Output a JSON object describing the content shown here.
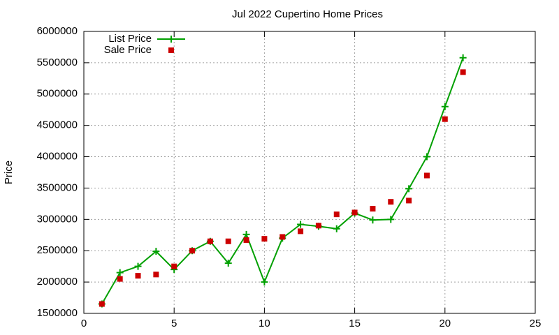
{
  "chart_data": {
    "type": "line",
    "title": "Jul 2022 Cupertino Home Prices",
    "y_label": "Price",
    "x": [
      1,
      2,
      3,
      4,
      5,
      6,
      7,
      8,
      9,
      10,
      11,
      12,
      13,
      14,
      15,
      16,
      17,
      18,
      19,
      20,
      21
    ],
    "series": [
      {
        "name": "List Price",
        "color": "#00a000",
        "style": "linespoints",
        "values": [
          1650000,
          2150000,
          2250000,
          2490000,
          2200000,
          2500000,
          2650000,
          2300000,
          2760000,
          2000000,
          2700000,
          2920000,
          2890000,
          2850000,
          3100000,
          2990000,
          3000000,
          3490000,
          4000000,
          4800000,
          5580000
        ]
      },
      {
        "name": "Sale Price",
        "color": "#cc0000",
        "style": "points",
        "values": [
          1650000,
          2050000,
          2100000,
          2120000,
          2250000,
          2500000,
          2650000,
          2650000,
          2670000,
          2690000,
          2720000,
          2810000,
          2900000,
          3080000,
          3110000,
          3170000,
          3280000,
          3300000,
          3700000,
          4600000,
          5350000
        ]
      }
    ],
    "xlim": [
      0,
      25
    ],
    "xticks": [
      0,
      5,
      10,
      15,
      20,
      25
    ],
    "ylim": [
      1500000,
      6000000
    ],
    "yticks": [
      1500000,
      2000000,
      2500000,
      3000000,
      3500000,
      4000000,
      4500000,
      5000000,
      5500000,
      6000000
    ],
    "grid": true,
    "legend": "top-left"
  }
}
